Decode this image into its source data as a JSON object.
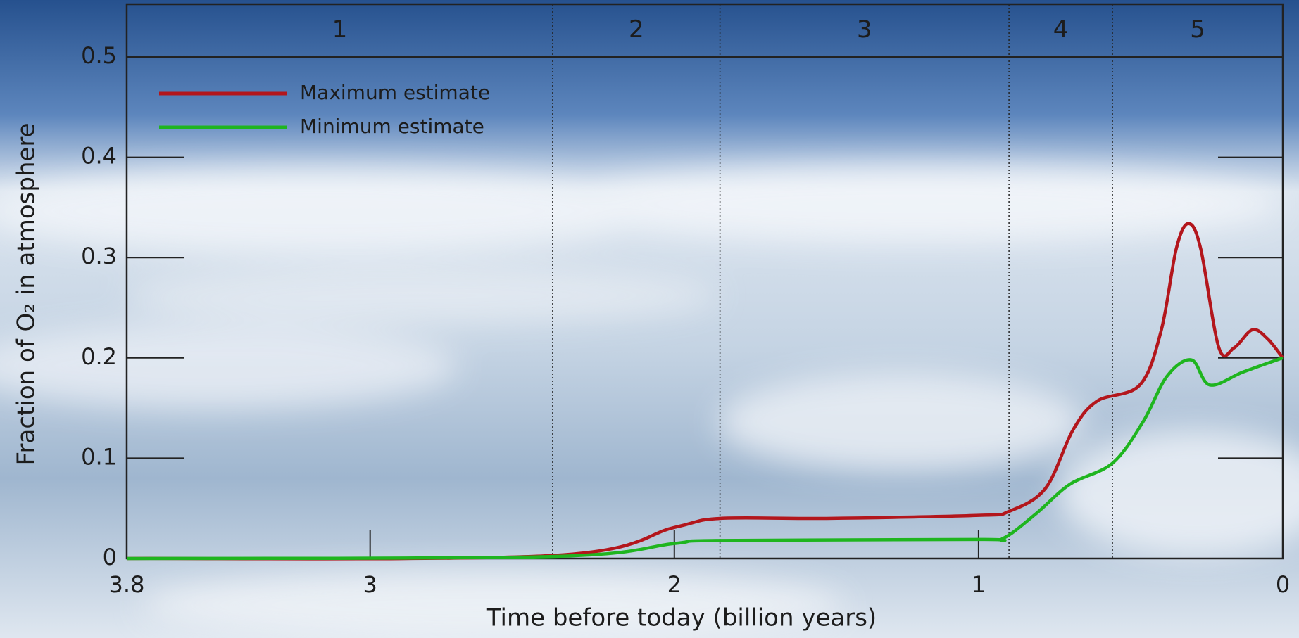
{
  "chart_data": {
    "type": "line",
    "xlabel": "Time before today (billion years)",
    "ylabel": "Fraction of O₂ in atmosphere",
    "xlim": [
      3.8,
      0
    ],
    "xticks": [
      3.8,
      3,
      2,
      1,
      0
    ],
    "ylim": [
      0,
      0.5
    ],
    "yticks": [
      0,
      0.1,
      0.2,
      0.3,
      0.4,
      0.5
    ],
    "legend": "upper left",
    "stages": [
      {
        "label": "1",
        "start": 3.8,
        "end": 2.4
      },
      {
        "label": "2",
        "start": 2.4,
        "end": 1.85
      },
      {
        "label": "3",
        "start": 1.85,
        "end": 0.9
      },
      {
        "label": "4",
        "start": 0.9,
        "end": 0.56
      },
      {
        "label": "5",
        "start": 0.56,
        "end": 0
      }
    ],
    "series": [
      {
        "name": "Maximum estimate",
        "color": "#b3161c",
        "x": [
          3.8,
          2.4,
          2.0,
          1.85,
          1.5,
          1.0,
          0.9,
          0.78,
          0.69,
          0.61,
          0.47,
          0.4,
          0.35,
          0.31,
          0.27,
          0.21,
          0.16,
          0.1,
          0.05,
          0
        ],
        "values": [
          0,
          0.003,
          0.031,
          0.04,
          0.04,
          0.043,
          0.047,
          0.07,
          0.128,
          0.157,
          0.173,
          0.227,
          0.309,
          0.334,
          0.309,
          0.21,
          0.21,
          0.228,
          0.219,
          0.2
        ]
      },
      {
        "name": "Minimum estimate",
        "color": "#1fb51f",
        "x": [
          3.8,
          2.4,
          2.0,
          1.85,
          1.0,
          0.92,
          0.81,
          0.7,
          0.56,
          0.46,
          0.38,
          0.3,
          0.24,
          0.13,
          0
        ],
        "values": [
          0,
          0.002,
          0.015,
          0.018,
          0.019,
          0.02,
          0.045,
          0.074,
          0.095,
          0.136,
          0.182,
          0.198,
          0.173,
          0.186,
          0.2
        ]
      }
    ]
  }
}
